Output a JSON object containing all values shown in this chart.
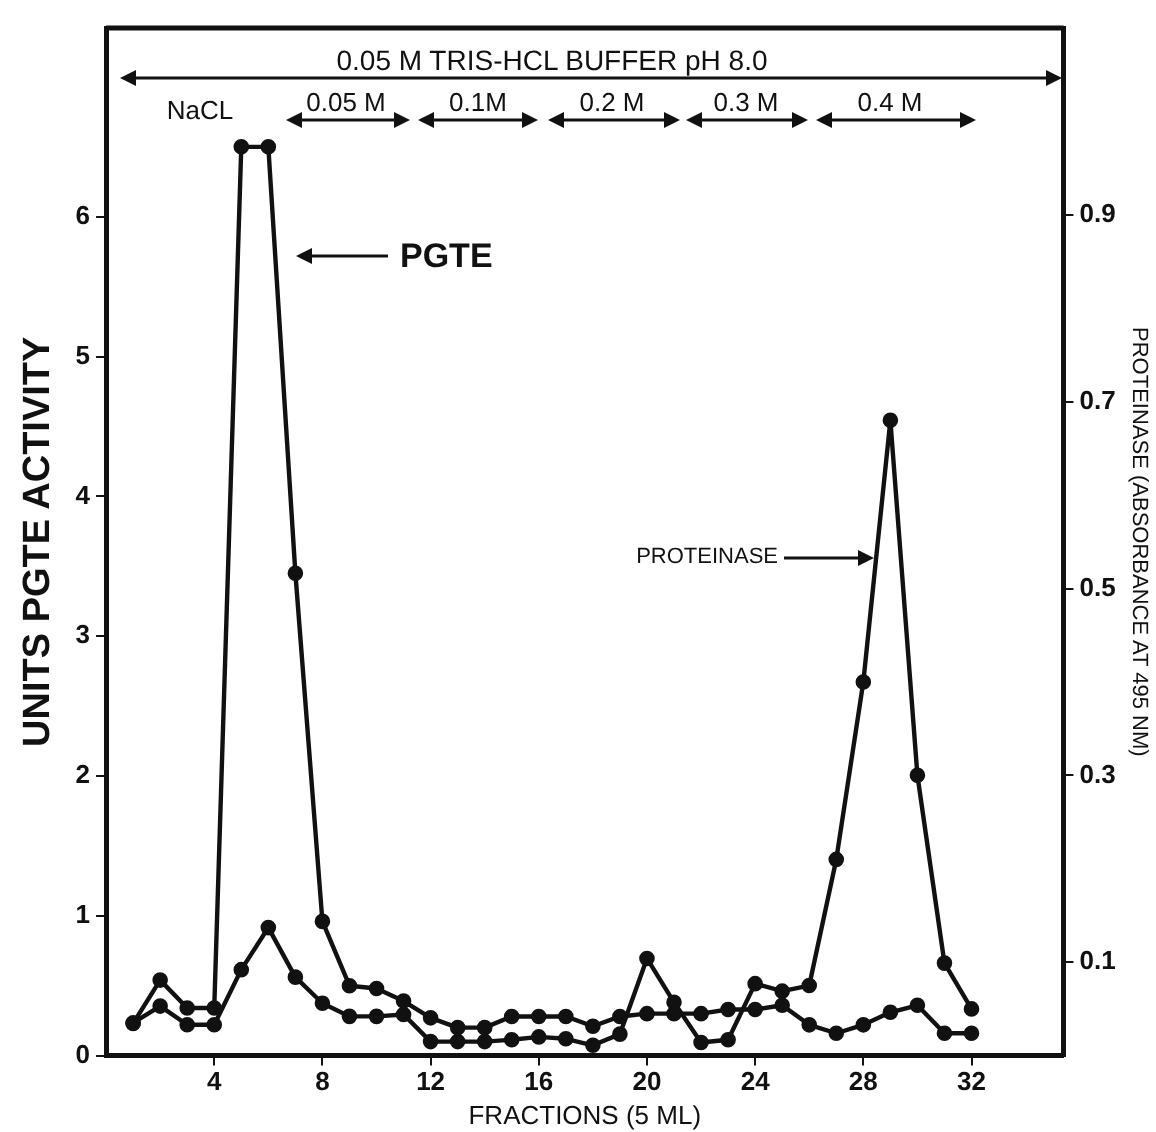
{
  "chart_data": {
    "type": "line",
    "xlabel": "FRACTIONS (5 ML)",
    "ylabel": "UNITS PGTE ACTIVITY",
    "y2label": "PROTEINASE (ABSORBANCE AT 495 NM)",
    "x": [
      1,
      2,
      3,
      4,
      5,
      6,
      7,
      8,
      9,
      10,
      11,
      12,
      13,
      14,
      15,
      16,
      17,
      18,
      19,
      20,
      21,
      22,
      23,
      24,
      25,
      26,
      27,
      28,
      29,
      30,
      31,
      32
    ],
    "series": [
      {
        "color": "#111111",
        "values": [
          0.23,
          0.54,
          0.34,
          0.34,
          6.5,
          6.5,
          3.45,
          0.96,
          0.5,
          0.48,
          0.39,
          0.27,
          0.2,
          0.2,
          0.28,
          0.28,
          0.28,
          0.21,
          0.28,
          0.3,
          0.3,
          0.3,
          0.33,
          0.33,
          0.36,
          0.22,
          0.16,
          0.22,
          0.31,
          0.36,
          0.16,
          0.16
        ]
      },
      {
        "color": "#111111",
        "axis": "y2",
        "values": [
          0.035,
          0.053,
          0.033,
          0.033,
          0.092,
          0.137,
          0.084,
          0.056,
          0.042,
          0.042,
          0.044,
          0.015,
          0.015,
          0.015,
          0.017,
          0.02,
          0.018,
          0.011,
          0.023,
          0.104,
          0.057,
          0.014,
          0.017,
          0.077,
          0.069,
          0.075,
          0.21,
          0.4,
          0.68,
          0.3,
          0.099,
          0.05
        ]
      }
    ],
    "xlim": [
      0,
      35.4
    ],
    "xticks": [
      4,
      8,
      12,
      16,
      20,
      24,
      28,
      32
    ],
    "ylim": [
      0,
      7.35
    ],
    "yticks": [
      0,
      1,
      2,
      3,
      4,
      5,
      6
    ],
    "y2lim": [
      0,
      1.1
    ],
    "y2ticks": [
      0.1,
      0.3,
      0.5,
      0.7,
      0.9
    ],
    "grid": false,
    "legend": false,
    "marker": "circle",
    "line_style": "solid",
    "annotations": [
      "0.05 M TRIS-HCL BUFFER pH 8.0",
      "NaCL",
      "0.05 M",
      "0.1M",
      "0.2 M",
      "0.3 M",
      "0.4 M",
      "PGTE",
      "PROTEINASE"
    ]
  }
}
